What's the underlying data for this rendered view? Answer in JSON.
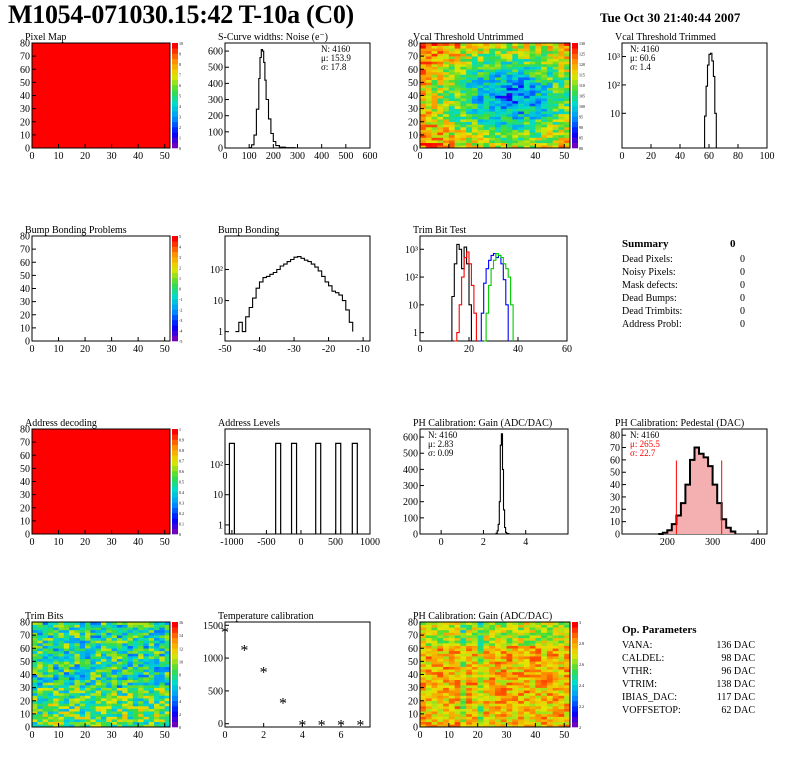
{
  "header": {
    "title": "M1054-071030.15:42 T-10a (C0)",
    "date": "Tue Oct 30 21:40:44 2007"
  },
  "colors": {
    "red": "#ff0000",
    "blue": "#0000ff",
    "green": "#00cc00"
  },
  "chart_data": [
    {
      "id": "pixel-map",
      "type": "heatmap",
      "title": "Pixel Map",
      "xlim": [
        0,
        52
      ],
      "ylim": [
        0,
        80
      ],
      "xticks": [
        "0",
        "10",
        "20",
        "30",
        "40",
        "50"
      ],
      "yticks": [
        "0",
        "10",
        "20",
        "30",
        "40",
        "50",
        "60",
        "70",
        "80"
      ],
      "zlim": [
        0,
        10
      ],
      "zticks": [
        "0",
        "1",
        "2",
        "3",
        "4",
        "5",
        "6",
        "7",
        "8",
        "9",
        "10"
      ],
      "fill": "uniform",
      "value": 10
    },
    {
      "id": "scurve-noise",
      "type": "line",
      "title": "S-Curve widths: Noise (e⁻)",
      "xlim": [
        0,
        600
      ],
      "ylim": [
        0,
        650
      ],
      "xticks": [
        "0",
        "100",
        "200",
        "300",
        "400",
        "500",
        "600"
      ],
      "yticks": [
        "0",
        "100",
        "200",
        "300",
        "400",
        "500",
        "600"
      ],
      "stats": [
        {
          "label": "N:",
          "value": "4160"
        },
        {
          "label": "μ:",
          "value": "153.9"
        },
        {
          "label": "σ:",
          "value": "17.8"
        }
      ],
      "series": [
        {
          "x": [
            80,
            100,
            110,
            120,
            130,
            140,
            145,
            150,
            155,
            160,
            165,
            170,
            180,
            190,
            200,
            210,
            225,
            250,
            290
          ],
          "y": [
            0,
            3,
            20,
            80,
            240,
            430,
            560,
            610,
            600,
            530,
            420,
            300,
            180,
            90,
            40,
            15,
            5,
            2,
            0
          ]
        }
      ]
    },
    {
      "id": "vcal-untrimmed",
      "type": "heatmap",
      "title": "Vcal Threshold Untrimmed",
      "xlim": [
        0,
        52
      ],
      "ylim": [
        0,
        80
      ],
      "xticks": [
        "0",
        "10",
        "20",
        "30",
        "40",
        "50"
      ],
      "yticks": [
        "0",
        "10",
        "20",
        "30",
        "40",
        "50",
        "60",
        "70",
        "80"
      ],
      "zticks": [
        "80",
        "85",
        "90",
        "95",
        "100",
        "105",
        "110",
        "115",
        "120",
        "125",
        "130"
      ],
      "fill": "bowl"
    },
    {
      "id": "vcal-trimmed",
      "type": "line",
      "title": "Vcal Threshold Trimmed",
      "log_y": true,
      "xlim": [
        0,
        100
      ],
      "ylim": [
        0.6,
        3000
      ],
      "xticks": [
        "0",
        "20",
        "40",
        "60",
        "80",
        "100"
      ],
      "yticks": [
        {
          "v": 10,
          "l": "10"
        },
        {
          "v": 100,
          "l": "10²"
        },
        {
          "v": 1000,
          "l": "10³"
        }
      ],
      "stats": [
        {
          "label": "N:",
          "value": "4160"
        },
        {
          "label": "μ:",
          "value": "60.6"
        },
        {
          "label": "σ:",
          "value": "1.4"
        }
      ],
      "series": [
        {
          "x": [
            56,
            57,
            58,
            59,
            60,
            61,
            62,
            63,
            64,
            65
          ],
          "y": [
            0.6,
            8,
            90,
            500,
            1200,
            1300,
            700,
            200,
            10,
            0.6
          ]
        }
      ]
    },
    {
      "id": "bump-problems",
      "type": "heatmap",
      "title": "Bump Bonding Problems",
      "xlim": [
        0,
        52
      ],
      "ylim": [
        0,
        80
      ],
      "xticks": [
        "0",
        "10",
        "20",
        "30",
        "40",
        "50"
      ],
      "yticks": [
        "0",
        "10",
        "20",
        "30",
        "40",
        "50",
        "60",
        "70",
        "80"
      ],
      "zticks": [
        "-5",
        "-4",
        "-3",
        "-2",
        "-1",
        "0",
        "1",
        "2",
        "3",
        "4",
        "5"
      ],
      "fill": "none"
    },
    {
      "id": "bump-bonding",
      "type": "line",
      "title": "Bump Bonding",
      "log_y": true,
      "xlim": [
        -50,
        -8
      ],
      "ylim": [
        0.5,
        1200
      ],
      "xticks": [
        {
          "v": -50,
          "l": "-50"
        },
        {
          "v": -40,
          "l": "-40"
        },
        {
          "v": -30,
          "l": "-30"
        },
        {
          "v": -20,
          "l": "-20"
        },
        {
          "v": -10,
          "l": "-10"
        }
      ],
      "yticks": [
        {
          "v": 1,
          "l": "1"
        },
        {
          "v": 10,
          "l": "10"
        },
        {
          "v": 100,
          "l": "10²"
        }
      ],
      "series": [
        {
          "x": [
            -47,
            -46,
            -45,
            -44,
            -43,
            -42,
            -41,
            -40,
            -39,
            -38,
            -37,
            -36,
            -35,
            -34,
            -33,
            -32,
            -31,
            -30,
            -29,
            -28,
            -27,
            -26,
            -25,
            -24,
            -23,
            -22,
            -21,
            -20,
            -19,
            -18,
            -17,
            -16,
            -15,
            -14,
            -13
          ],
          "y": [
            1,
            2,
            1,
            3,
            6,
            12,
            25,
            40,
            55,
            60,
            70,
            80,
            100,
            130,
            150,
            180,
            210,
            250,
            260,
            230,
            200,
            180,
            150,
            120,
            90,
            60,
            40,
            30,
            20,
            18,
            15,
            10,
            5,
            2,
            1
          ]
        }
      ]
    },
    {
      "id": "trim-bit-test",
      "type": "line",
      "title": "Trim Bit Test",
      "log_y": true,
      "xlim": [
        0,
        60
      ],
      "ylim": [
        0.5,
        3000
      ],
      "xticks": [
        "0",
        "20",
        "40",
        "60"
      ],
      "yticks": [
        {
          "v": 1,
          "l": "1"
        },
        {
          "v": 10,
          "l": "10"
        },
        {
          "v": 100,
          "l": "10²"
        },
        {
          "v": 1000,
          "l": "10³"
        }
      ],
      "series": [
        {
          "color": "#000000",
          "x": [
            12,
            13,
            14,
            15,
            16,
            17,
            18,
            19,
            20,
            21
          ],
          "y": [
            0.5,
            20,
            300,
            1500,
            1000,
            200,
            1200,
            300,
            10,
            0.5
          ]
        },
        {
          "color": "#ff0000",
          "x": [
            14,
            15,
            16,
            17,
            18,
            19,
            20,
            21,
            22,
            23
          ],
          "y": [
            0.5,
            1,
            10,
            100,
            500,
            800,
            300,
            50,
            5,
            0.5
          ]
        },
        {
          "color": "#0000ff",
          "x": [
            24,
            25,
            26,
            27,
            28,
            29,
            30,
            31,
            32,
            33,
            34,
            35,
            36
          ],
          "y": [
            0.5,
            5,
            60,
            200,
            400,
            600,
            700,
            500,
            600,
            300,
            80,
            10,
            0.5
          ]
        },
        {
          "color": "#00cc00",
          "x": [
            26,
            27,
            28,
            29,
            30,
            31,
            32,
            33,
            34,
            35,
            36,
            37,
            38
          ],
          "y": [
            0.5,
            5,
            50,
            200,
            400,
            700,
            600,
            500,
            300,
            200,
            100,
            10,
            0.5
          ]
        }
      ]
    },
    {
      "id": "address-decoding",
      "type": "heatmap",
      "title": "Address decoding",
      "xlim": [
        0,
        52
      ],
      "ylim": [
        0,
        80
      ],
      "xticks": [
        "0",
        "10",
        "20",
        "30",
        "40",
        "50"
      ],
      "yticks": [
        "0",
        "10",
        "20",
        "30",
        "40",
        "50",
        "60",
        "70",
        "80"
      ],
      "zticks": [
        "0",
        "0.1",
        "0.2",
        "0.3",
        "0.4",
        "0.5",
        "0.6",
        "0.7",
        "0.8",
        "0.9",
        "1"
      ],
      "fill": "uniform",
      "value": 1
    },
    {
      "id": "address-levels",
      "type": "line",
      "title": "Address Levels",
      "log_y": true,
      "xlim": [
        -1100,
        1000
      ],
      "ylim": [
        0.5,
        1500
      ],
      "xticks": [
        {
          "v": -1000,
          "l": "-1000"
        },
        {
          "v": -500,
          "l": "-500"
        },
        {
          "v": 0,
          "l": "0"
        },
        {
          "v": 500,
          "l": "500"
        },
        {
          "v": 1000,
          "l": "1000"
        }
      ],
      "yticks": [
        {
          "v": 1,
          "l": "1"
        },
        {
          "v": 10,
          "l": "10"
        },
        {
          "v": 100,
          "l": "10²"
        }
      ],
      "peaks": [
        -1000,
        -330,
        -100,
        250,
        540,
        780
      ],
      "peak_value": 500
    },
    {
      "id": "ph-gain",
      "type": "line",
      "title": "PH Calibration: Gain (ADC/DAC)",
      "xlim": [
        -1,
        6
      ],
      "ylim": [
        0,
        650
      ],
      "xticks": [
        {
          "v": 0,
          "l": "0"
        },
        {
          "v": 2,
          "l": "2"
        },
        {
          "v": 4,
          "l": "4"
        }
      ],
      "yticks": [
        "0",
        "100",
        "200",
        "300",
        "400",
        "500",
        "600"
      ],
      "stats": [
        {
          "label": "N:",
          "value": "4160"
        },
        {
          "label": "μ:",
          "value": "2.83"
        },
        {
          "label": "σ:",
          "value": "0.09"
        }
      ],
      "series": [
        {
          "x": [
            2.5,
            2.6,
            2.65,
            2.7,
            2.75,
            2.8,
            2.85,
            2.9,
            2.95,
            3.0,
            3.05,
            3.1,
            3.2
          ],
          "y": [
            0,
            5,
            20,
            60,
            200,
            550,
            620,
            400,
            150,
            40,
            10,
            3,
            0
          ]
        }
      ]
    },
    {
      "id": "ph-pedestal",
      "type": "line",
      "title": "PH Calibration: Pedestal (DAC)",
      "xlim": [
        100,
        420
      ],
      "ylim": [
        0,
        85
      ],
      "xticks": [
        {
          "v": 200,
          "l": "200"
        },
        {
          "v": 300,
          "l": "300"
        },
        {
          "v": 400,
          "l": "400"
        }
      ],
      "yticks": [
        "0",
        "10",
        "20",
        "30",
        "40",
        "50",
        "60",
        "70",
        "80"
      ],
      "stats": [
        {
          "label": "N:",
          "value": "4160",
          "color": "#000000"
        },
        {
          "label": "μ:",
          "value": "265.5",
          "color": "#ff0000"
        },
        {
          "label": "σ:",
          "value": "22.7",
          "color": "#ff0000"
        }
      ],
      "cut_lines": [
        220,
        320
      ],
      "series": [
        {
          "x": [
            180,
            190,
            200,
            210,
            220,
            230,
            240,
            250,
            260,
            270,
            280,
            290,
            300,
            310,
            320,
            330,
            340,
            350
          ],
          "y": [
            0,
            1,
            3,
            8,
            15,
            25,
            40,
            60,
            70,
            65,
            62,
            55,
            40,
            25,
            12,
            5,
            2,
            0
          ]
        }
      ]
    },
    {
      "id": "trim-bits",
      "type": "heatmap",
      "title": "Trim Bits",
      "xlim": [
        0,
        52
      ],
      "ylim": [
        0,
        80
      ],
      "xticks": [
        "0",
        "10",
        "20",
        "30",
        "40",
        "50"
      ],
      "yticks": [
        "0",
        "10",
        "20",
        "30",
        "40",
        "50",
        "60",
        "70",
        "80"
      ],
      "zticks": [
        "0",
        "2",
        "4",
        "6",
        "8",
        "10",
        "12",
        "14",
        "16"
      ],
      "fill": "noise"
    },
    {
      "id": "temperature-calibration",
      "type": "scatter",
      "title": "Temperature calibration",
      "xlim": [
        0,
        7.5
      ],
      "ylim": [
        -50,
        1550
      ],
      "xticks": [
        {
          "v": 0,
          "l": "0"
        },
        {
          "v": 2,
          "l": "2"
        },
        {
          "v": 4,
          "l": "4"
        },
        {
          "v": 6,
          "l": "6"
        }
      ],
      "yticks": [
        {
          "v": 0,
          "l": "0"
        },
        {
          "v": 500,
          "l": "500"
        },
        {
          "v": 1000,
          "l": "1000"
        },
        {
          "v": 1500,
          "l": "1500"
        }
      ],
      "series": [
        {
          "x": [
            0,
            1,
            2,
            3,
            4,
            5,
            6,
            7
          ],
          "y": [
            1420,
            1150,
            810,
            340,
            0,
            0,
            0,
            0
          ]
        }
      ]
    },
    {
      "id": "ph-gain-map",
      "type": "heatmap",
      "title": "PH Calibration: Gain (ADC/DAC)",
      "xlim": [
        0,
        52
      ],
      "ylim": [
        0,
        80
      ],
      "xticks": [
        "0",
        "10",
        "20",
        "30",
        "40",
        "50"
      ],
      "yticks": [
        "0",
        "10",
        "20",
        "30",
        "40",
        "50",
        "60",
        "70",
        "80"
      ],
      "zticks": [
        "2",
        "2.2",
        "2.4",
        "2.6",
        "2.8",
        "3"
      ],
      "fill": "gain"
    }
  ],
  "summary": {
    "title": "Summary",
    "total": "0",
    "rows": [
      {
        "label": "Dead Pixels:",
        "value": "0"
      },
      {
        "label": "Noisy Pixels:",
        "value": "0"
      },
      {
        "label": "Mask defects:",
        "value": "0"
      },
      {
        "label": "Dead Bumps:",
        "value": "0"
      },
      {
        "label": "Dead Trimbits:",
        "value": "0"
      },
      {
        "label": "Address Probl:",
        "value": "0"
      }
    ]
  },
  "op_parameters": {
    "title": "Op. Parameters",
    "rows": [
      {
        "label": "VANA:",
        "value": "136 DAC"
      },
      {
        "label": "CALDEL:",
        "value": "98 DAC"
      },
      {
        "label": "VTHR:",
        "value": "96 DAC"
      },
      {
        "label": "VTRIM:",
        "value": "138 DAC"
      },
      {
        "label": "IBIAS_DAC:",
        "value": "117 DAC"
      },
      {
        "label": "VOFFSETOP:",
        "value": "62 DAC"
      }
    ]
  }
}
